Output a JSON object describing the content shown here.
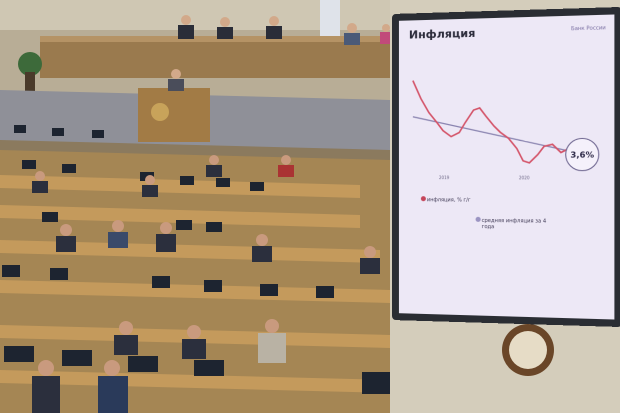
{
  "screen": {
    "title": "Инфляция",
    "brand": "Банк России",
    "value_badge": "3,6%",
    "legend_inflation": "инфляция, % г/г",
    "legend_avg": "средняя инфляция за 4 года",
    "ticks": [
      "2019",
      "2020"
    ]
  },
  "colors": {
    "screen_bg": "#ede8f6",
    "series_line": "#d4556a",
    "avg_line": "#8a84b0"
  }
}
